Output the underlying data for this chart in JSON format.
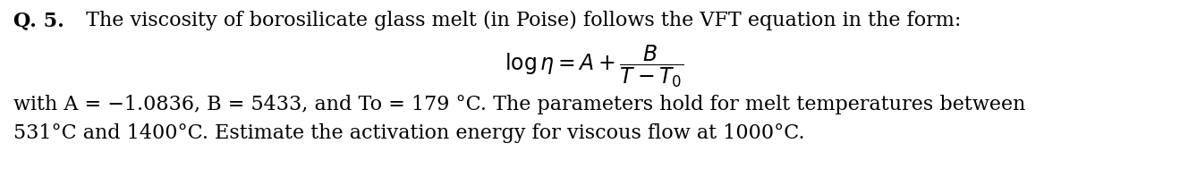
{
  "background_color": "#ffffff",
  "fig_width": 13.28,
  "fig_height": 1.98,
  "dpi": 100,
  "line1_bold": "Q. 5.",
  "line1_normal": " The viscosity of borosilicate glass melt (in Poise) follows the VFT equation in the form:",
  "line3": "with A = −1.0836, B = 5433, and To = 179 °C. The parameters hold for melt temperatures between",
  "line4": "531°C and 1400°C. Estimate the activation energy for viscous flow at 1000°C.",
  "font_size_main": 16,
  "font_size_eq": 16,
  "text_color": "#000000"
}
